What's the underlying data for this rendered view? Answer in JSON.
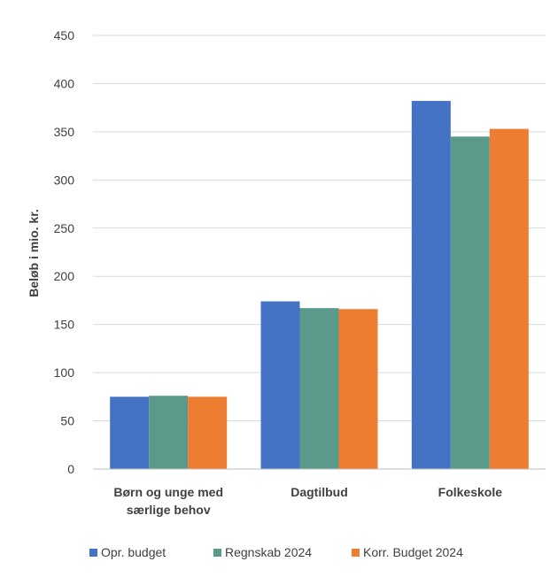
{
  "chart_data": {
    "type": "bar",
    "title": "",
    "xlabel": "",
    "ylabel": "Beløb i mio. kr.",
    "ylim": [
      0,
      450
    ],
    "yticks": [
      0,
      50,
      100,
      150,
      200,
      250,
      300,
      350,
      400,
      450
    ],
    "grid": true,
    "legend_position": "bottom",
    "categories": [
      [
        "Børn og unge med",
        "særlige behov"
      ],
      [
        "Dagtilbud"
      ],
      [
        "Folkeskole"
      ]
    ],
    "series": [
      {
        "name": "Opr. budget",
        "color": "#4472c4",
        "values": [
          75,
          174,
          382
        ]
      },
      {
        "name": "Regnskab 2024",
        "color": "#5b9a8b",
        "values": [
          76,
          167,
          345
        ]
      },
      {
        "name": "Korr. Budget 2024",
        "color": "#ed7d31",
        "values": [
          75,
          166,
          353
        ]
      }
    ]
  }
}
